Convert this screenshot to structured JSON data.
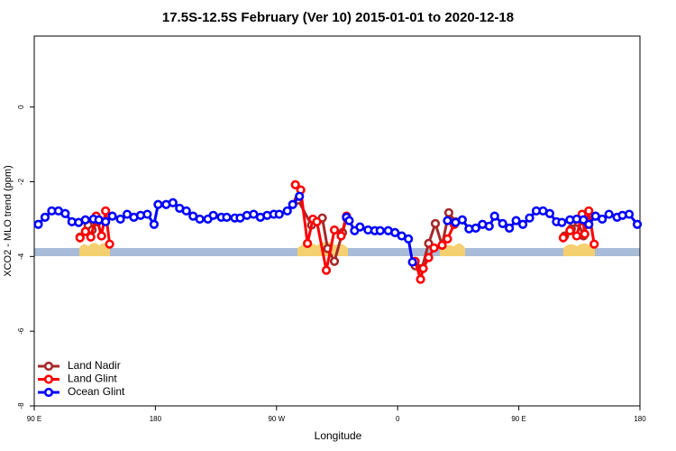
{
  "chart_data": {
    "type": "line",
    "title": "17.5S-12.5S February (Ver 10)   2015-01-01 to 2020-12-18",
    "xlabel": "Longitude",
    "ylabel": "XCO2 - MLO trend (ppm)",
    "xlim": [
      90,
      540
    ],
    "xticks": [
      {
        "value": 90,
        "label": "90 E"
      },
      180,
      {
        "value": 270,
        "label": "90 W"
      },
      {
        "value": 360,
        "label": "0"
      },
      {
        "value": 450,
        "label": "90 E"
      },
      {
        "value": 540,
        "label": "180"
      }
    ],
    "ylim": [
      -8,
      1.9
    ],
    "yticks": [
      0,
      -2,
      -4,
      -6,
      -8
    ],
    "legend": "bottom left",
    "series": [
      {
        "name": "Land Nadir",
        "color": "#a52a2a",
        "x": [
          124,
          130,
          133,
          137,
          140,
          200,
          286,
          296,
          304,
          308,
          313,
          319,
          322,
          350,
          373,
          378,
          383,
          388,
          393,
          398,
          403,
          450,
          484,
          489,
          494,
          498,
          501
        ],
        "values": [
          -3.48,
          -3.16,
          -3.29,
          -3.07,
          -3.45,
          null,
          -2.49,
          -3.16,
          -2.97,
          -3.79,
          -4.13,
          -3.36,
          -2.97,
          null,
          -4.25,
          -4.32,
          -3.65,
          -3.12,
          -3.7,
          -2.83,
          -3.07,
          null,
          -3.45,
          -3.26,
          -3.09,
          -3.45,
          -3.04
        ]
      },
      {
        "name": "Land Glint",
        "color": "#ff0000",
        "x": [
          124,
          128,
          132,
          136,
          140,
          143,
          146,
          200,
          284,
          288,
          293,
          297,
          300,
          307,
          313,
          318,
          322,
          350,
          373,
          377,
          379,
          383,
          387,
          393,
          397,
          402,
          450,
          483,
          488,
          493,
          497,
          499,
          502,
          506
        ],
        "values": [
          -3.5,
          -3.33,
          -3.48,
          -2.92,
          -3.45,
          -2.78,
          -3.67,
          null,
          -2.08,
          -2.22,
          -3.65,
          -3.0,
          -3.07,
          -4.37,
          -3.29,
          -3.45,
          -2.92,
          null,
          -4.13,
          -4.61,
          -4.32,
          -4.03,
          -3.77,
          -3.7,
          -3.53,
          -3.14,
          null,
          -3.5,
          -3.31,
          -3.45,
          -2.87,
          -3.4,
          -2.78,
          -3.67
        ]
      },
      {
        "name": "Ocean Glint",
        "color": "#0000ff",
        "x": [
          93,
          98,
          103,
          108,
          113,
          118,
          123,
          128,
          134,
          138,
          143,
          148,
          154,
          159,
          164,
          169,
          174,
          179,
          182,
          188,
          193,
          198,
          203,
          208,
          213,
          219,
          223,
          229,
          233,
          239,
          243,
          248,
          253,
          258,
          263,
          268,
          272,
          278,
          282,
          287,
          305,
          322,
          324,
          328,
          332,
          338,
          343,
          347,
          353,
          358,
          363,
          368,
          371,
          385,
          397,
          403,
          408,
          413,
          418,
          423,
          428,
          432,
          438,
          443,
          448,
          453,
          458,
          463,
          468,
          473,
          478,
          482,
          488,
          493,
          498,
          502,
          507,
          512,
          517,
          523,
          527,
          532,
          538
        ],
        "values": [
          -3.14,
          -2.95,
          -2.78,
          -2.78,
          -2.85,
          -3.07,
          -3.09,
          -3.02,
          -3.0,
          -3.02,
          -3.07,
          -2.92,
          -3.0,
          -2.87,
          -2.95,
          -2.9,
          -2.87,
          -3.14,
          -2.61,
          -2.61,
          -2.56,
          -2.71,
          -2.78,
          -2.92,
          -3.0,
          -3.0,
          -2.9,
          -2.95,
          -2.95,
          -2.97,
          -2.97,
          -2.9,
          -2.87,
          -2.95,
          -2.9,
          -2.87,
          -2.87,
          -2.78,
          -2.61,
          -2.39,
          null,
          -2.95,
          -3.04,
          -3.31,
          -3.21,
          -3.29,
          -3.31,
          -3.31,
          -3.31,
          -3.36,
          -3.45,
          -3.53,
          -4.15,
          null,
          -3.04,
          -3.09,
          -3.02,
          -3.26,
          -3.24,
          -3.14,
          -3.19,
          -2.92,
          -3.12,
          -3.24,
          -3.04,
          -3.14,
          -2.97,
          -2.78,
          -2.78,
          -2.85,
          -3.07,
          -3.09,
          -3.02,
          -3.0,
          -3.02,
          -3.14,
          -2.92,
          -3.0,
          -2.87,
          -2.95,
          -2.9,
          -2.87,
          -3.14
        ]
      }
    ]
  }
}
